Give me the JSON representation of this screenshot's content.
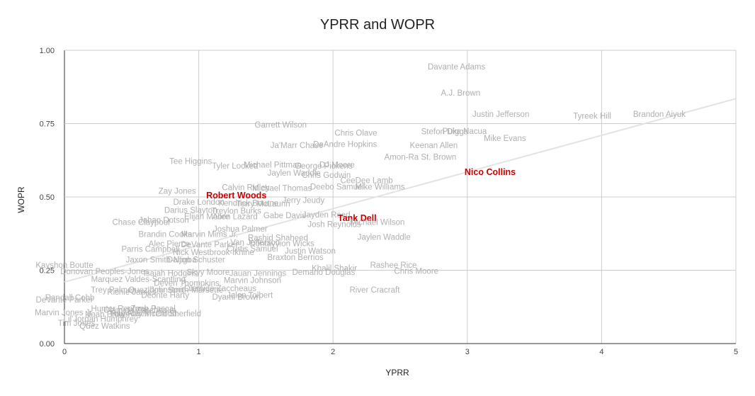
{
  "chart_data": {
    "type": "scatter",
    "title": "YPRR and WOPR",
    "xlabel": "YPRR",
    "ylabel": "WOPR",
    "xlim": [
      0,
      5
    ],
    "ylim": [
      0,
      1
    ],
    "x_ticks": [
      "0",
      "1",
      "2",
      "3",
      "4",
      "5"
    ],
    "y_ticks": [
      "0.00",
      "0.25",
      "0.50",
      "0.75",
      "1.00"
    ],
    "grid": true,
    "legend": "none",
    "trendline": {
      "x": [
        0,
        5
      ],
      "y": [
        0.21,
        0.835
      ]
    },
    "highlight_color": "#cc0000",
    "label_color": "#b0b0b0",
    "points": [
      {
        "label": "Davante Adams",
        "x": 2.92,
        "y": 0.945
      },
      {
        "label": "A.J. Brown",
        "x": 2.95,
        "y": 0.855
      },
      {
        "label": "Justin Jefferson",
        "x": 3.25,
        "y": 0.783
      },
      {
        "label": "Tyreek Hill",
        "x": 3.93,
        "y": 0.776
      },
      {
        "label": "Brandon Aiyuk",
        "x": 4.43,
        "y": 0.783
      },
      {
        "label": "Garrett Wilson",
        "x": 1.61,
        "y": 0.746
      },
      {
        "label": "Chris Olave",
        "x": 2.17,
        "y": 0.718
      },
      {
        "label": "Stefon Diggs",
        "x": 2.83,
        "y": 0.723
      },
      {
        "label": "Puka Nacua",
        "x": 2.98,
        "y": 0.725
      },
      {
        "label": "Mike Evans",
        "x": 3.28,
        "y": 0.7
      },
      {
        "label": "Ja'Marr Chase",
        "x": 1.73,
        "y": 0.676
      },
      {
        "label": "DeAndre Hopkins",
        "x": 2.09,
        "y": 0.68
      },
      {
        "label": "Keenan Allen",
        "x": 2.75,
        "y": 0.676
      },
      {
        "label": "Amon-Ra St. Brown",
        "x": 2.65,
        "y": 0.636
      },
      {
        "label": "Tee Higgins",
        "x": 0.94,
        "y": 0.622
      },
      {
        "label": "Tyler Lockett",
        "x": 1.27,
        "y": 0.606
      },
      {
        "label": "Michael Pittman",
        "x": 1.55,
        "y": 0.61
      },
      {
        "label": "George Pickens",
        "x": 1.93,
        "y": 0.606
      },
      {
        "label": "DJ Moore",
        "x": 2.03,
        "y": 0.61
      },
      {
        "label": "Jaylen Waddle",
        "x": 1.71,
        "y": 0.582
      },
      {
        "label": "Chris Godwin",
        "x": 1.95,
        "y": 0.575
      },
      {
        "label": "CeeDee Lamb",
        "x": 2.25,
        "y": 0.557
      },
      {
        "label": "Calvin Ridley",
        "x": 1.35,
        "y": 0.533
      },
      {
        "label": "Michael Thomas",
        "x": 1.62,
        "y": 0.53
      },
      {
        "label": "Deebo Samuel",
        "x": 2.03,
        "y": 0.535
      },
      {
        "label": "Mike Williams",
        "x": 2.35,
        "y": 0.535
      },
      {
        "label": "Zay Jones",
        "x": 0.84,
        "y": 0.52
      },
      {
        "label": "Robert Woods",
        "x": 1.28,
        "y": 0.505,
        "highlight": true
      },
      {
        "label": "Kendrick Bourne",
        "x": 1.37,
        "y": 0.48
      },
      {
        "label": "Jerry Jeudy",
        "x": 1.78,
        "y": 0.489
      },
      {
        "label": "Drake London",
        "x": 1.0,
        "y": 0.483
      },
      {
        "label": "Terry McLaurin",
        "x": 1.48,
        "y": 0.477
      },
      {
        "label": "Darius Slayton",
        "x": 0.94,
        "y": 0.455
      },
      {
        "label": "Treylon Burks",
        "x": 1.28,
        "y": 0.453
      },
      {
        "label": "Gabe Davis",
        "x": 1.64,
        "y": 0.437
      },
      {
        "label": "Jayden Reed",
        "x": 1.95,
        "y": 0.44
      },
      {
        "label": "Tank Dell",
        "x": 2.18,
        "y": 0.428,
        "highlight": true
      },
      {
        "label": "Michael Wilson",
        "x": 2.33,
        "y": 0.414
      },
      {
        "label": "Josh Reynolds",
        "x": 2.01,
        "y": 0.407
      },
      {
        "label": "Elijah Moore",
        "x": 1.06,
        "y": 0.433
      },
      {
        "label": "Allen Lazard",
        "x": 1.27,
        "y": 0.433
      },
      {
        "label": "Chase Claypool",
        "x": 0.57,
        "y": 0.414
      },
      {
        "label": "Jahan Dotson",
        "x": 0.74,
        "y": 0.421
      },
      {
        "label": "Joshua Palmer",
        "x": 1.31,
        "y": 0.391
      },
      {
        "label": "Brandin Cooks",
        "x": 0.75,
        "y": 0.373
      },
      {
        "label": "Marvin Mims Jr.",
        "x": 1.08,
        "y": 0.373
      },
      {
        "label": "Rashid Shaheed",
        "x": 1.59,
        "y": 0.361
      },
      {
        "label": "Jaylen Waddle",
        "x": 2.38,
        "y": 0.363
      },
      {
        "label": "Alec Pierce",
        "x": 0.78,
        "y": 0.34
      },
      {
        "label": "DeVante Parker",
        "x": 1.08,
        "y": 0.338
      },
      {
        "label": "Van Jefferson",
        "x": 1.42,
        "y": 0.345
      },
      {
        "label": "Dontayvion Wicks",
        "x": 1.62,
        "y": 0.342
      },
      {
        "label": "Parris Campbell",
        "x": 0.64,
        "y": 0.322
      },
      {
        "label": "Nick Westbrook-Ikhine",
        "x": 1.11,
        "y": 0.312
      },
      {
        "label": "Curtis Samuel",
        "x": 1.4,
        "y": 0.324
      },
      {
        "label": "Justin Watson",
        "x": 1.83,
        "y": 0.316
      },
      {
        "label": "Braxton Berrios",
        "x": 1.72,
        "y": 0.295
      },
      {
        "label": "Jaxon Smith-Njigba",
        "x": 0.72,
        "y": 0.286
      },
      {
        "label": "Dalton Schuster",
        "x": 0.98,
        "y": 0.286
      },
      {
        "label": "Kayshon Boutte",
        "x": 0.0,
        "y": 0.268
      },
      {
        "label": "Rashee Rice",
        "x": 2.45,
        "y": 0.268
      },
      {
        "label": "Chris Moore",
        "x": 2.62,
        "y": 0.248
      },
      {
        "label": "Khalil Shakir",
        "x": 2.01,
        "y": 0.257
      },
      {
        "label": "Demario Douglas",
        "x": 1.93,
        "y": 0.244
      },
      {
        "label": "Jauan Jennings",
        "x": 1.44,
        "y": 0.24
      },
      {
        "label": "Donovan Peoples-Jones",
        "x": 0.3,
        "y": 0.246
      },
      {
        "label": "Isaiah Hodgins",
        "x": 0.79,
        "y": 0.24
      },
      {
        "label": "Skyy Moore",
        "x": 1.07,
        "y": 0.244
      },
      {
        "label": "Marquez Valdes-Scantling",
        "x": 0.55,
        "y": 0.22
      },
      {
        "label": "Marvin Johnson",
        "x": 1.4,
        "y": 0.216
      },
      {
        "label": "Deven Thompkins",
        "x": 0.91,
        "y": 0.206
      },
      {
        "label": "Trey Palmer",
        "x": 0.36,
        "y": 0.184
      },
      {
        "label": "Richie James",
        "x": 0.5,
        "y": 0.176
      },
      {
        "label": "Quez Johnston",
        "x": 0.68,
        "y": 0.184
      },
      {
        "label": "Ihmir Smith-Marsette",
        "x": 0.9,
        "y": 0.184
      },
      {
        "label": "Olamide Zaccheaus",
        "x": 1.16,
        "y": 0.188
      },
      {
        "label": "Deonte Harty",
        "x": 0.75,
        "y": 0.165
      },
      {
        "label": "Dyami Brown",
        "x": 1.28,
        "y": 0.16
      },
      {
        "label": "Jalen Tolbert",
        "x": 1.38,
        "y": 0.165
      },
      {
        "label": "River Cracraft",
        "x": 2.31,
        "y": 0.184
      },
      {
        "label": "Randall Cobb",
        "x": 0.04,
        "y": 0.157
      },
      {
        "label": "DeVante Parker",
        "x": 0.0,
        "y": 0.15
      },
      {
        "label": "Hunter Renfrow",
        "x": 0.41,
        "y": 0.119
      },
      {
        "label": "Zach Pascal",
        "x": 0.66,
        "y": 0.119
      },
      {
        "label": "Olamide Zaccheaus",
        "x": 0.56,
        "y": 0.115
      },
      {
        "label": "Marvin Jones Jr.",
        "x": 0.0,
        "y": 0.106
      },
      {
        "label": "Noah Brown",
        "x": 0.32,
        "y": 0.1
      },
      {
        "label": "Tutu Atwell",
        "x": 0.48,
        "y": 0.103
      },
      {
        "label": "Ray-Ray McCloud",
        "x": 0.59,
        "y": 0.103
      },
      {
        "label": "Trent Sherfield",
        "x": 0.82,
        "y": 0.103
      },
      {
        "label": "Lil'Jordan Humphrey",
        "x": 0.27,
        "y": 0.085
      },
      {
        "label": "Tim Jones",
        "x": 0.09,
        "y": 0.07
      },
      {
        "label": "Quez Watkins",
        "x": 0.3,
        "y": 0.06
      },
      {
        "label": "Nico Collins",
        "x": 3.17,
        "y": 0.585,
        "highlight": true
      }
    ]
  }
}
